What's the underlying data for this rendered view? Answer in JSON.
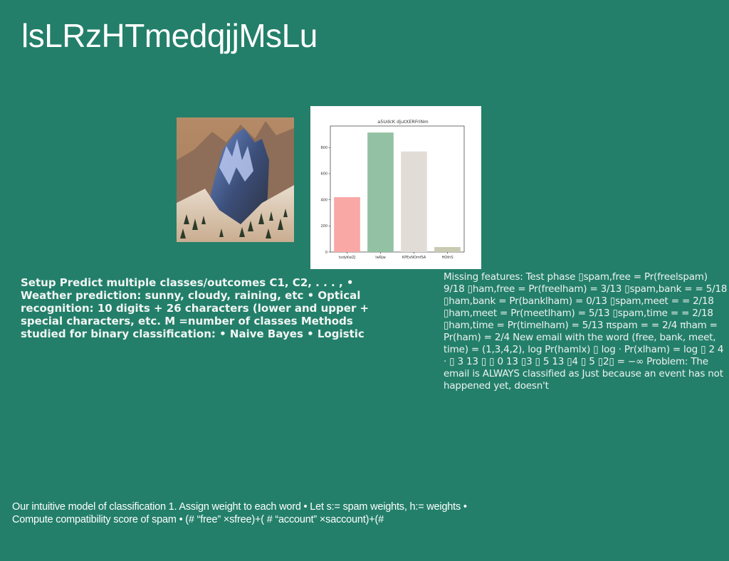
{
  "slide": {
    "title": "lsLRzHTmedqjjMsLu",
    "left_text": "Setup Predict multiple classes/outcomes C1, C2, . . . , • Weather prediction: sunny, cloudy, raining, etc • Optical recognition: 10 digits + 26 characters (lower and upper + special characters, etc. M =number of classes Methods studied for binary classification: • Naive Bayes • Logistic",
    "right_text": "Missing features: Test phase ▯spam,free = Pr(freelspam) 9/18 ▯ham,free = Pr(freelham) = 3/13 ▯spam,bank = = 5/18 ▯ham,bank = Pr(banklham) = 0/13 ▯spam,meet = = 2/18 ▯ham,meet = Pr(meetlham) = 5/13 ▯spam,time = = 2/18 ▯ham,time = Pr(timelham) = 5/13 πspam = = 2/4 πham = Pr(ham) = 2/4 New email with the word (free, bank, meet, time) = (1,3,4,2), log Pr(hamlx) ▯ log · Pr(xlham) = log ▯ 2 4 · ▯ 3 13 ▯ ▯ 0 13 ▯3 ▯ 5 13 ▯4 ▯ 5 ▯2▯ = −∞ Problem: The email is ALWAYS classified as Just because an event has not happened yet, doesn't",
    "bottom_text": "Our intuitive model of classification 1. Assign weight to each word • Let s:= spam weights, h:= weights • Compute compatibility score of spam • (# “free” ×sfree)+( # “account” ×saccount)+(#"
  },
  "chart_data": {
    "type": "bar",
    "title": "a5UdcK djutXERFriNm",
    "categories": [
      "txdyKwZJ",
      "lwRjw",
      "KPExNOmfSA",
      "HOthS"
    ],
    "values": [
      420,
      915,
      770,
      38
    ],
    "colors": [
      "#f9a8a6",
      "#93c1a3",
      "#e2dcd6",
      "#c8cbb1"
    ],
    "yticks": [
      0,
      200,
      400,
      600,
      800
    ],
    "ylim": [
      0,
      965
    ],
    "xlabel": "",
    "ylabel": "",
    "grid": false
  }
}
